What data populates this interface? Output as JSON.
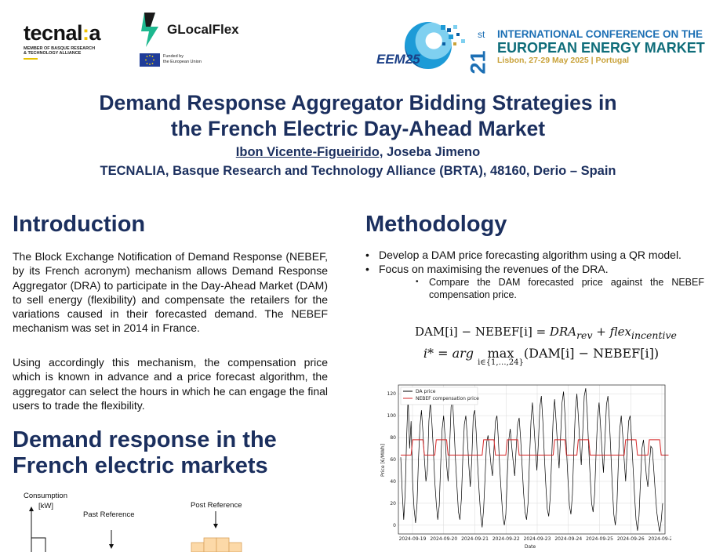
{
  "header": {
    "tecnalia": {
      "name_part1": "tecnal",
      "name_colon": ":",
      "name_part2": "a",
      "subtitle": "MEMBER OF BASQUE RESEARCH\n& TECHNOLOGY ALLIANCE"
    },
    "glocalflex": {
      "name": "GLocalFlex",
      "eu_funding": "Funded by\nthe European Union"
    },
    "eem": {
      "logo_text": "EEM25"
    },
    "conference": {
      "number": "21",
      "ordinal": "st",
      "line1": "INTERNATIONAL CONFERENCE ON THE",
      "line2": "EUROPEAN ENERGY MARKET",
      "line3": "Lisbon, 27-29 May 2025 | Portugal"
    }
  },
  "title": {
    "line1": "Demand Response Aggregator Bidding Strategies in",
    "line2": "the French Electric Day-Ahead Market",
    "author1": "Ibon Vicente-Figueirido,",
    "author2": " Joseba Jimeno",
    "affiliation": "TECNALIA, Basque Research and Technology Alliance (BRTA), 48160, Derio – Spain"
  },
  "introduction": {
    "heading": "Introduction",
    "paragraph1": "The Block Exchange Notification of Demand Response (NEBEF, by its French acronym) mechanism allows Demand Response Aggregator (DRA) to participate in the Day-Ahead Market (DAM) to sell energy (flexibility) and compensate the retailers for the variations caused in their forecasted demand. The NEBEF mechanism was set in 2014 in France.",
    "paragraph2": "Using accordingly this mechanism, the compensation price which is known in advance and a price forecast algorithm, the aggregator can select the hours in which he can engage the final users to trade the flexibility."
  },
  "demand_response": {
    "heading": "Demand response in the French electric markets",
    "diagram": {
      "y_label": "Consumption",
      "y_unit": "[kW]",
      "past_reference": "Past Reference",
      "post_reference": "Post Reference"
    }
  },
  "methodology": {
    "heading": "Methodology",
    "bullet1": "Develop a DAM price forecasting algorithm using a QR model.",
    "bullet2": "Focus on maximising the revenues of the DRA.",
    "sub_bullet1": "Compare the DAM forecasted price against the NEBEF compensation price.",
    "equation1": {
      "lhs": "DAM[i] − NEBEF[i] = ",
      "rhs1": "DRA",
      "rhs1_sub": "rev",
      "plus": " + ",
      "rhs2": "flex",
      "rhs2_sub": "incentive"
    },
    "equation2": {
      "lhs": "i* = arg ",
      "op": "max",
      "limits": "i∈{1,…,24}",
      "body": "(DAM[i] − NEBEF[i])"
    }
  },
  "chart_data": {
    "type": "line",
    "ylabel": "Price [€/MWh]",
    "xlabel": "Date",
    "ylim": [
      -8,
      128
    ],
    "yticks": [
      0,
      20,
      40,
      60,
      80,
      100,
      120
    ],
    "x_ticks": [
      "2024-09-19",
      "2024-09-20",
      "2024-09-21",
      "2024-09-22",
      "2024-09-23",
      "2024-09-24",
      "2024-09-25",
      "2024-09-26",
      "2024-09-27"
    ],
    "grid": true,
    "legend_position": "top-left",
    "series": [
      {
        "name": "DA price",
        "color": "#000000",
        "values": [
          62,
          30,
          5,
          30,
          80,
          118,
          70,
          95,
          40,
          15,
          2,
          20,
          60,
          90,
          105,
          85,
          60,
          40,
          50,
          95,
          112,
          95,
          70,
          40,
          20,
          5,
          18,
          55,
          88,
          100,
          80,
          55,
          40,
          70,
          108,
          115,
          90,
          60,
          35,
          12,
          5,
          25,
          65,
          92,
          100,
          80,
          55,
          35,
          60,
          100,
          105,
          85,
          55,
          30,
          10,
          -2,
          15,
          45,
          75,
          82,
          70,
          55,
          45,
          70,
          95,
          100,
          78,
          50,
          28,
          8,
          0,
          10,
          45,
          78,
          88,
          72,
          58,
          45,
          70,
          92,
          98,
          80,
          55,
          30,
          12,
          5,
          20,
          60,
          95,
          112,
          92,
          70,
          50,
          75,
          108,
          118,
          95,
          65,
          38,
          15,
          8,
          25,
          62,
          98,
          115,
          95,
          72,
          52,
          80,
          112,
          122,
          100,
          70,
          42,
          18,
          10,
          28,
          70,
          105,
          120,
          100,
          75,
          55,
          85,
          118,
          125,
          102,
          72,
          45,
          20,
          12,
          28,
          66,
          98,
          112,
          92,
          68,
          48,
          78,
          110,
          118,
          95,
          65,
          35,
          10,
          0,
          15,
          55,
          88,
          100,
          82,
          60,
          40,
          70,
          95,
          100,
          78,
          52,
          28,
          5,
          -5,
          8,
          40,
          70,
          78,
          62,
          45,
          35,
          55,
          72,
          70,
          50,
          30,
          12,
          2,
          -6,
          4,
          20
        ]
      },
      {
        "name": "NEBEF compensation price",
        "color": "#d62728",
        "values": [
          64,
          64,
          64,
          64,
          64,
          64,
          64,
          64,
          64,
          64,
          64,
          64,
          64,
          64,
          64,
          64,
          64,
          64,
          64,
          64,
          64,
          64,
          64,
          64,
          64,
          64,
          64,
          64,
          64,
          64,
          64,
          64,
          64,
          64,
          64,
          64,
          64,
          64,
          64,
          64,
          64,
          64,
          64,
          64,
          64,
          64,
          64,
          64,
          64,
          64,
          64,
          64,
          64,
          64,
          64,
          64,
          64,
          64,
          64,
          64,
          64,
          64,
          64,
          64,
          64,
          64,
          64,
          64,
          64,
          64,
          64,
          64,
          64,
          64,
          64,
          64,
          64,
          64,
          64,
          64,
          64,
          64,
          64,
          64,
          64,
          64,
          64,
          64,
          64,
          64,
          64,
          64,
          64,
          64,
          64,
          64,
          64,
          64,
          64,
          64,
          64,
          64,
          64,
          64,
          64,
          64,
          64,
          64,
          64,
          64,
          64,
          64,
          64,
          64,
          64,
          64,
          64,
          64,
          64,
          64,
          64,
          64,
          64,
          64,
          64,
          64,
          64,
          64,
          64,
          64,
          64,
          64,
          64,
          64,
          64,
          64,
          64,
          64,
          64,
          64,
          64,
          64,
          64,
          64,
          64,
          64,
          64,
          64,
          64,
          64,
          64,
          64,
          64,
          64,
          64,
          64,
          64,
          64,
          64,
          64,
          64,
          64,
          64,
          64,
          64,
          64,
          64,
          64,
          64,
          64,
          64,
          64,
          64,
          64,
          64,
          64,
          64,
          64,
          64,
          64,
          64,
          64
        ]
      }
    ]
  }
}
